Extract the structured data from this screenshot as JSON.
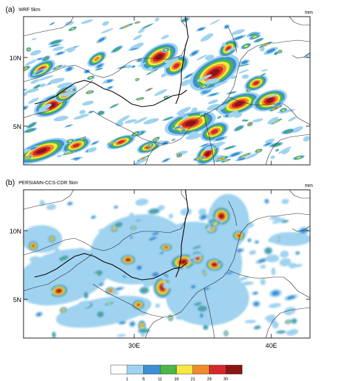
{
  "panels": [
    {
      "label": "(a)",
      "title": "WRF 5km",
      "units": "mm",
      "yticks": [
        "10N",
        "5N"
      ],
      "xticks": []
    },
    {
      "label": "(b)",
      "title": "PERSIANN-CCS-CDR 5km",
      "units": "mm",
      "yticks": [
        "10N",
        "5N"
      ],
      "xticks": [
        "30E",
        "40E"
      ]
    }
  ],
  "legend": {
    "thresholds": [
      "1",
      "6",
      "11",
      "16",
      "21",
      "26",
      "30"
    ],
    "colors": [
      "#ffffff",
      "#9fd3f0",
      "#3d8fd6",
      "#4cb648",
      "#f4e842",
      "#f08a2a",
      "#d62828",
      "#8b1414"
    ]
  },
  "colors": {
    "frame": "#000000",
    "border": "#222222",
    "river": "#000000"
  }
}
